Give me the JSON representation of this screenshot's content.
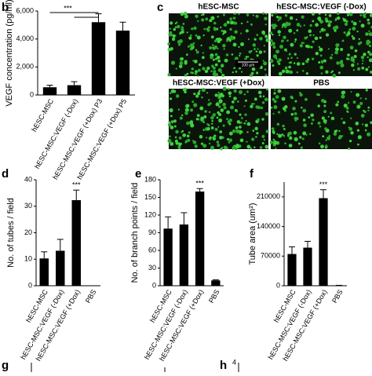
{
  "chart_data": [
    {
      "type": "bar",
      "panel": "b",
      "ylabel": "VEGF concentration (pg/ml)",
      "categories": [
        "hESC-MSC",
        "hESC-MSC:VEGF (-Dox)",
        "hESC-MSC:VEGF (+Dox) P3",
        "hESC-MSC:VEGF (+Dox) P5"
      ],
      "values": [
        550,
        700,
        5200,
        4600
      ],
      "errors": [
        150,
        250,
        600,
        600
      ],
      "color": "#000000",
      "ylim": [
        0,
        6000
      ],
      "yticks": [
        0,
        {
          "value": 2000,
          "label": "2,000"
        },
        {
          "value": 4000,
          "label": "4,000"
        },
        {
          "value": 6000,
          "label": "6,000"
        }
      ],
      "annotation": "***"
    },
    {
      "type": "bar",
      "panel": "d",
      "ylabel": "No. of tubes / field",
      "categories": [
        "hESC-MSC",
        "hESC-MSC:VEGF (-Dox)",
        "hESC-MSC:VEGF (+Dox)",
        "PBS"
      ],
      "values": [
        10.3,
        13.2,
        32.3,
        null
      ],
      "errors": [
        2.5,
        4.3,
        3.8,
        null
      ],
      "color": "#000000",
      "ylim": [
        0,
        40
      ],
      "yticks": [
        0,
        10,
        20,
        30,
        40
      ],
      "annotation": "***"
    },
    {
      "type": "bar",
      "panel": "e",
      "ylabel": "No. of branch points / field",
      "categories": [
        "hESC-MSC",
        "hESC-MSC:VEGF (-Dox)",
        "hESC-MSC:VEGF (+Dox)",
        "PBS"
      ],
      "values": [
        97,
        104,
        160,
        9
      ],
      "errors": [
        20,
        20,
        5,
        1
      ],
      "color": "#000000",
      "ylim": [
        0,
        180
      ],
      "yticks": [
        0,
        30,
        60,
        90,
        120,
        150,
        180
      ],
      "annotation": "***"
    },
    {
      "type": "bar",
      "panel": "f",
      "ylabel": "Tube area (um²)",
      "categories": [
        "hESC-MSC",
        "hESC-MSC:VEGF (-Dox)",
        "hESC-MSC:VEGF (+Dox)",
        "PBS"
      ],
      "values": [
        75000,
        90000,
        207000,
        1000
      ],
      "errors": [
        17000,
        15000,
        20000,
        0
      ],
      "color": "#000000",
      "ylim": [
        0,
        245000
      ],
      "yticks": [
        0,
        70000,
        140000,
        210000
      ],
      "annotation": "***"
    }
  ],
  "micrographs": {
    "panel": "c",
    "labels": [
      "hESC-MSC",
      "hESC-MSC:VEGF (-Dox)",
      "hESC-MSC:VEGF (+Dox)",
      "PBS"
    ],
    "scale_bar": "100 μm"
  },
  "fragments": [
    {
      "panel": "g"
    },
    {
      "panel": "h",
      "tick": "4"
    }
  ]
}
